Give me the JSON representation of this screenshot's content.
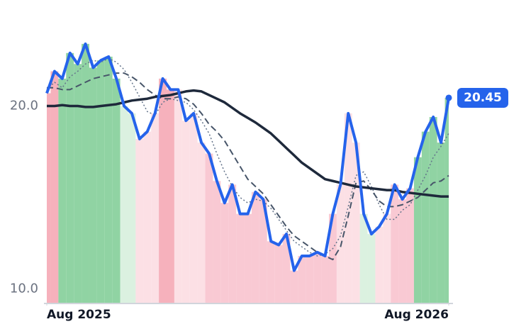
{
  "chart_data": {
    "type": "line",
    "x": [
      0,
      1,
      2,
      3,
      4,
      5,
      6,
      7,
      8,
      9,
      10,
      11,
      12,
      13,
      14,
      15,
      16,
      17,
      18,
      19,
      20,
      21,
      22,
      23,
      24,
      25,
      26,
      27,
      28,
      29,
      30,
      31,
      32,
      33,
      34,
      35,
      36,
      37,
      38,
      39,
      40,
      41,
      42,
      43,
      44,
      45,
      46,
      47,
      48,
      49,
      50,
      51,
      52
    ],
    "xlim": [
      0,
      52
    ],
    "xticks": [
      {
        "value": 0,
        "label": "Aug 2025"
      },
      {
        "value": 52,
        "label": "Aug 2026"
      }
    ],
    "ylim": [
      9.2,
      25.8
    ],
    "yticks": [
      {
        "value": 10,
        "label": "10.0"
      },
      {
        "value": 20,
        "label": "20.0"
      }
    ],
    "bands": [
      {
        "from": 0,
        "to": 2,
        "color": "#f4a3b0"
      },
      {
        "from": 2,
        "to": 10,
        "color": "#7ccb93"
      },
      {
        "from": 10,
        "to": 12,
        "color": "#d5eedb"
      },
      {
        "from": 12,
        "to": 15,
        "color": "#fcdbe1"
      },
      {
        "from": 15,
        "to": 17,
        "color": "#f4a3b0"
      },
      {
        "from": 17,
        "to": 21,
        "color": "#fcdbe1"
      },
      {
        "from": 21,
        "to": 38,
        "color": "#f8c0cb"
      },
      {
        "from": 38,
        "to": 41,
        "color": "#fcdbe1"
      },
      {
        "from": 41,
        "to": 43,
        "color": "#d5eedb"
      },
      {
        "from": 43,
        "to": 45,
        "color": "#fcdbe1"
      },
      {
        "from": 45,
        "to": 48,
        "color": "#f8c0cb"
      },
      {
        "from": 48,
        "to": 53,
        "color": "#7ccb93"
      }
    ],
    "series": [
      {
        "color": "#2563eb",
        "style": "solid",
        "width": 4,
        "values": [
          20.7,
          21.9,
          21.5,
          22.9,
          22.3,
          23.4,
          22.1,
          22.5,
          22.7,
          21.5,
          20.0,
          19.6,
          18.2,
          18.6,
          19.6,
          21.5,
          20.9,
          20.9,
          19.2,
          19.6,
          18.0,
          17.4,
          15.9,
          14.7,
          15.7,
          14.1,
          14.1,
          15.3,
          14.9,
          12.6,
          12.4,
          13.0,
          11.0,
          11.8,
          11.8,
          12.0,
          11.8,
          14.1,
          15.7,
          19.6,
          18.0,
          14.1,
          13.0,
          13.4,
          14.1,
          15.7,
          14.9,
          15.5,
          17.2,
          18.6,
          19.4,
          18.0,
          20.45
        ]
      },
      {
        "color": "#1e293b",
        "style": "solid",
        "width": 3.5,
        "values": [
          20.0,
          20.0,
          20.05,
          20.0,
          20.0,
          19.95,
          19.95,
          20.0,
          20.05,
          20.1,
          20.2,
          20.3,
          20.35,
          20.4,
          20.5,
          20.55,
          20.6,
          20.7,
          20.8,
          20.85,
          20.8,
          20.6,
          20.4,
          20.2,
          19.9,
          19.6,
          19.35,
          19.1,
          18.8,
          18.5,
          18.1,
          17.7,
          17.3,
          16.9,
          16.6,
          16.3,
          16.0,
          15.9,
          15.8,
          15.7,
          15.6,
          15.55,
          15.5,
          15.45,
          15.4,
          15.4,
          15.3,
          15.25,
          15.2,
          15.15,
          15.1,
          15.05,
          15.05
        ]
      },
      {
        "color": "#475569",
        "style": "dashed",
        "width": 2,
        "values": [
          21.0,
          21.0,
          20.9,
          20.9,
          21.1,
          21.3,
          21.5,
          21.6,
          21.7,
          21.8,
          21.8,
          21.6,
          21.3,
          20.9,
          20.6,
          20.4,
          20.4,
          20.5,
          20.4,
          20.1,
          19.6,
          19.0,
          18.6,
          18.1,
          17.4,
          16.7,
          16.0,
          15.6,
          15.2,
          14.6,
          14.0,
          13.4,
          12.9,
          12.6,
          12.3,
          12.0,
          11.8,
          11.6,
          12.3,
          14.0,
          15.8,
          15.9,
          15.4,
          14.8,
          14.5,
          14.5,
          14.6,
          14.8,
          15.0,
          15.4,
          15.8,
          15.9,
          16.2
        ]
      },
      {
        "color": "#64748b",
        "style": "dotted",
        "width": 1.5,
        "values": [
          20.9,
          21.3,
          21.0,
          21.6,
          21.9,
          22.3,
          22.5,
          22.4,
          22.6,
          22.4,
          22.0,
          21.3,
          20.5,
          19.7,
          19.5,
          20.2,
          20.4,
          20.3,
          20.2,
          19.8,
          19.2,
          18.5,
          17.4,
          16.4,
          15.6,
          15.0,
          14.7,
          14.9,
          14.8,
          14.4,
          13.8,
          13.2,
          12.6,
          12.3,
          12.0,
          11.8,
          11.9,
          12.2,
          12.9,
          14.5,
          16.2,
          16.4,
          15.6,
          14.6,
          13.8,
          13.8,
          14.3,
          14.6,
          15.4,
          16.2,
          17.2,
          17.8,
          18.5
        ]
      }
    ]
  }
}
